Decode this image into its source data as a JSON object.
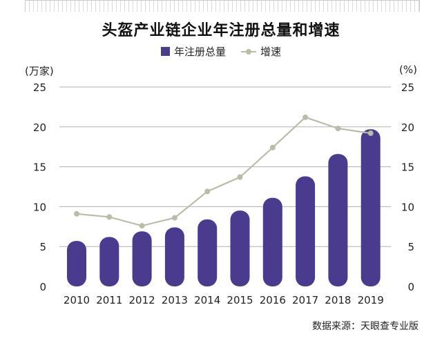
{
  "title": "头盔产业链企业年注册总量和增速",
  "source": "数据来源：天眼查专业版",
  "colors": {
    "bar": "#4a3b8f",
    "line": "#b9bda7",
    "grid": "#b0b0b0"
  },
  "chart_data": {
    "type": "bar+line",
    "title": "头盔产业链企业年注册总量和增速",
    "categories": [
      "2010",
      "2011",
      "2012",
      "2013",
      "2014",
      "2015",
      "2016",
      "2017",
      "2018",
      "2019"
    ],
    "series": [
      {
        "name": "年注册总量",
        "type": "bar",
        "axis": "left",
        "values": [
          5.7,
          6.2,
          6.9,
          7.4,
          8.4,
          9.5,
          11.1,
          13.8,
          16.6,
          19.7
        ]
      },
      {
        "name": "增速",
        "type": "line",
        "axis": "right",
        "values": [
          9.1,
          8.7,
          7.6,
          8.6,
          11.9,
          13.7,
          17.4,
          21.2,
          19.8,
          19.2
        ]
      }
    ],
    "y_left": {
      "label": "(万家)",
      "range": [
        0,
        25
      ],
      "ticks": [
        "0",
        "5",
        "10",
        "15",
        "20",
        "25"
      ]
    },
    "y_right": {
      "label": "(%)",
      "range": [
        0,
        25
      ],
      "ticks": [
        "0",
        "5",
        "10",
        "15",
        "20",
        "25"
      ]
    },
    "grid": true,
    "legend": "top-center"
  }
}
